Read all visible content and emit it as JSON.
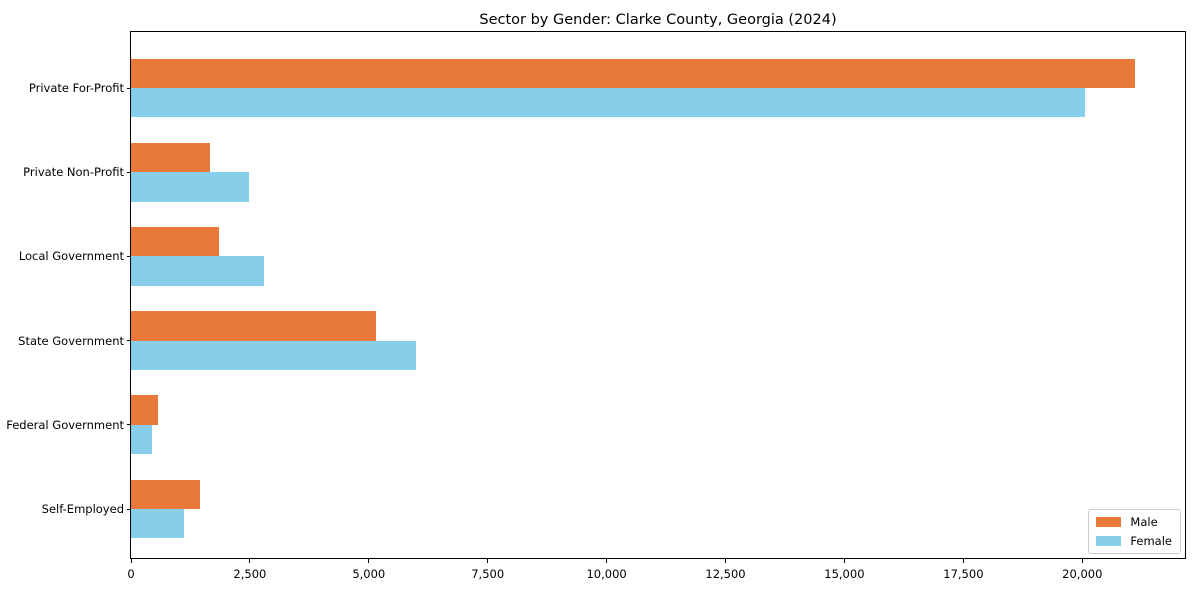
{
  "chart_data": {
    "type": "bar",
    "orientation": "horizontal",
    "title": "Sector by Gender: Clarke County, Georgia (2024)",
    "categories": [
      "Private For-Profit",
      "Private Non-Profit",
      "Local Government",
      "State Government",
      "Federal Government",
      "Self-Employed"
    ],
    "series": [
      {
        "name": "Male",
        "color": "#e8793b",
        "values": [
          21100,
          1660,
          1840,
          5160,
          560,
          1450
        ]
      },
      {
        "name": "Female",
        "color": "#87ceeb",
        "values": [
          20050,
          2480,
          2800,
          6000,
          430,
          1110
        ]
      }
    ],
    "xlim": [
      0,
      22160
    ],
    "xticks": [
      0,
      2500,
      5000,
      7500,
      10000,
      12500,
      15000,
      17500,
      20000
    ],
    "xtick_labels": [
      "0",
      "2,500",
      "5,000",
      "7,500",
      "10,000",
      "12,500",
      "15,000",
      "17,500",
      "20,000"
    ],
    "xlabel": "",
    "ylabel": "",
    "grid": false,
    "legend_position": "lower right",
    "background_color": "#ffffff",
    "axis_color": "#000000"
  },
  "legend": {
    "items": [
      {
        "label": "Male"
      },
      {
        "label": "Female"
      }
    ]
  }
}
